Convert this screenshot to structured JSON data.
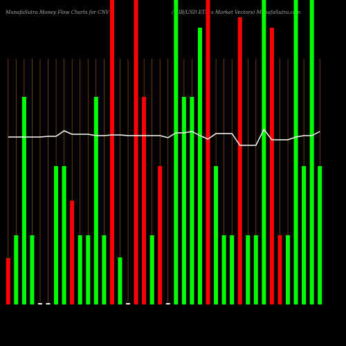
{
  "chart_data": {
    "type": "bar",
    "title": "MunafaSutra  Money Flow  Charts for CNV",
    "subtitle": "(MIB/USD ETN x  Market Vectors) MunafaSutra.com",
    "values": [
      67,
      100,
      300,
      100,
      2,
      2,
      200,
      200,
      150,
      100,
      100,
      300,
      100,
      440,
      68,
      2,
      440,
      300,
      100,
      200,
      2,
      440,
      300,
      300,
      400,
      440,
      200,
      100,
      100,
      415,
      100,
      100,
      440,
      400,
      100,
      100,
      440,
      200,
      440,
      200
    ],
    "colors": [
      "#ff0000",
      "#00ff00",
      "#00ff00",
      "#00ff00",
      "#ffffff",
      "#ffffff",
      "#00ff00",
      "#00ff00",
      "#ff0000",
      "#00ff00",
      "#00ff00",
      "#00ff00",
      "#00ff00",
      "#ff0000",
      "#00ff00",
      "#ffffff",
      "#ff0000",
      "#ff0000",
      "#00ff00",
      "#ff0000",
      "#ffffff",
      "#00ff00",
      "#00ff00",
      "#00ff00",
      "#00ff00",
      "#ff0000",
      "#00ff00",
      "#00ff00",
      "#00ff00",
      "#ff0000",
      "#00ff00",
      "#00ff00",
      "#00ff00",
      "#ff0000",
      "#ff0000",
      "#00ff00",
      "#00ff00",
      "#00ff00",
      "#00ff00",
      "#00ff00"
    ],
    "line": {
      "color": "#ffffff",
      "values": [
        242,
        242,
        242,
        242,
        242,
        243,
        243,
        251,
        246,
        246,
        246,
        244,
        244,
        245,
        245,
        244,
        244,
        244,
        244,
        244,
        241,
        248,
        248,
        250,
        244,
        239,
        247,
        247,
        247,
        230,
        230,
        230,
        253,
        238,
        238,
        238,
        242,
        244,
        244,
        250
      ]
    },
    "ylim": [
      0,
      440
    ],
    "grid_color": "#b35a00"
  }
}
